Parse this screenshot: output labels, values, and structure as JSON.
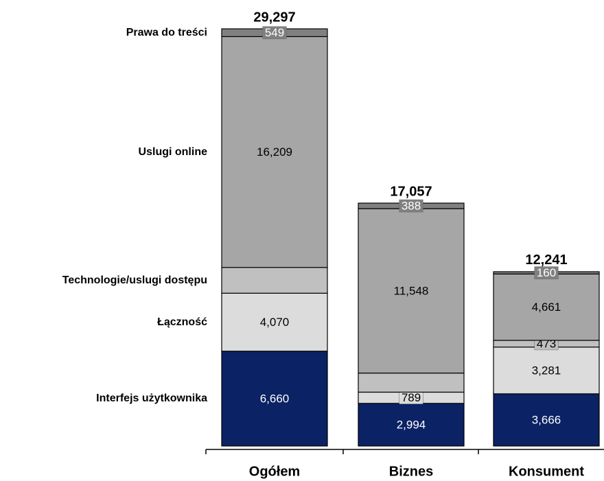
{
  "chart_data": {
    "type": "stacked-bar",
    "categories": [
      "Ogółem",
      "Biznes",
      "Konsument"
    ],
    "series": [
      {
        "name": "Interfejs użytkownika",
        "color": "#0b2264",
        "values": [
          6660,
          2994,
          3666
        ],
        "value_labels": [
          "6,660",
          "2,994",
          "3,666"
        ]
      },
      {
        "name": "Łączność",
        "color": "#dcdcdc",
        "values": [
          4070,
          789,
          3281
        ],
        "value_labels": [
          "4,070",
          "789",
          "3,281"
        ]
      },
      {
        "name": "Technologie/uslugi dostępu",
        "color": "#c0c0c0",
        "values": [
          1809,
          1338,
          473
        ],
        "value_labels": [
          null,
          null,
          "473"
        ]
      },
      {
        "name": "Uslugi online",
        "color": "#a6a6a6",
        "values": [
          16209,
          11548,
          4661
        ],
        "value_labels": [
          "16,209",
          "11,548",
          "4,661"
        ]
      },
      {
        "name": "Prawa do treści",
        "color": "#808080",
        "values": [
          549,
          388,
          160
        ],
        "value_labels": [
          "549",
          "388",
          "160"
        ]
      }
    ],
    "totals": [
      29297,
      17057,
      12241
    ],
    "total_labels": [
      "29,297",
      "17,057",
      "12,241"
    ]
  }
}
